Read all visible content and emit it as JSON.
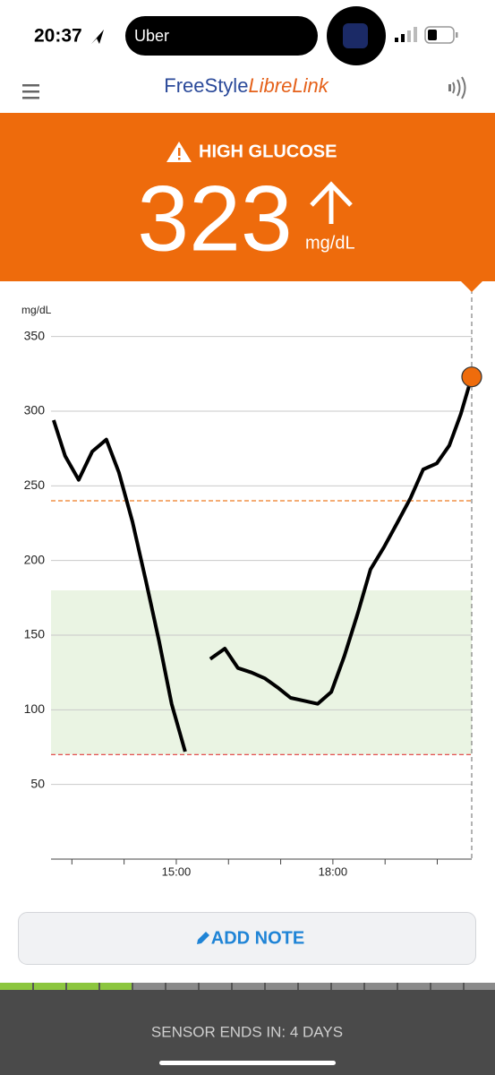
{
  "status_bar": {
    "time": "20:37",
    "app": "Uber"
  },
  "header": {
    "brand_1": "FreeStyle",
    "brand_2": "LibreLink"
  },
  "alert": {
    "title": "HIGH GLUCOSE",
    "value": "323",
    "unit": "mg/dL"
  },
  "chart_data": {
    "type": "line",
    "y_label": "mg/dL",
    "x": [
      12.65,
      12.87,
      13.13,
      13.39,
      13.66,
      13.9,
      14.16,
      14.42,
      14.67,
      14.91,
      15.17,
      15.4,
      15.65,
      15.93,
      16.18,
      16.44,
      16.7,
      16.94,
      17.19,
      17.45,
      17.71,
      17.97,
      18.22,
      18.48,
      18.72,
      18.98,
      19.23,
      19.49,
      19.73,
      19.99,
      20.23,
      20.45,
      20.66
    ],
    "series": [
      {
        "color": "#000000",
        "values": [
          294,
          270,
          254,
          273,
          281,
          259,
          226,
          186,
          146,
          104,
          72,
          null,
          134,
          141,
          128,
          125,
          121,
          115,
          108,
          106,
          104,
          112,
          136,
          165,
          194,
          209,
          225,
          242,
          261,
          265,
          277,
          298,
          323
        ]
      }
    ],
    "xlim": [
      12.6,
      20.66
    ],
    "ylim": [
      0,
      375
    ],
    "xticks": [
      13,
      14,
      {
        "value": 15,
        "label": "15:00"
      },
      16,
      17,
      {
        "value": 18,
        "label": "18:00"
      },
      19,
      20
    ],
    "yticks": [
      50,
      100,
      150,
      200,
      250,
      300,
      350
    ],
    "grid": true,
    "target_range": [
      70,
      180
    ],
    "target_color": "#eaf4e3",
    "high_line": 240,
    "high_color": "#ee7a22",
    "low_line": 70,
    "low_color": "#e03a3a",
    "current_color": "#ef6c0c"
  },
  "button": {
    "label": "ADD NOTE"
  },
  "footer": {
    "text": "SENSOR ENDS IN: 4 DAYS"
  }
}
